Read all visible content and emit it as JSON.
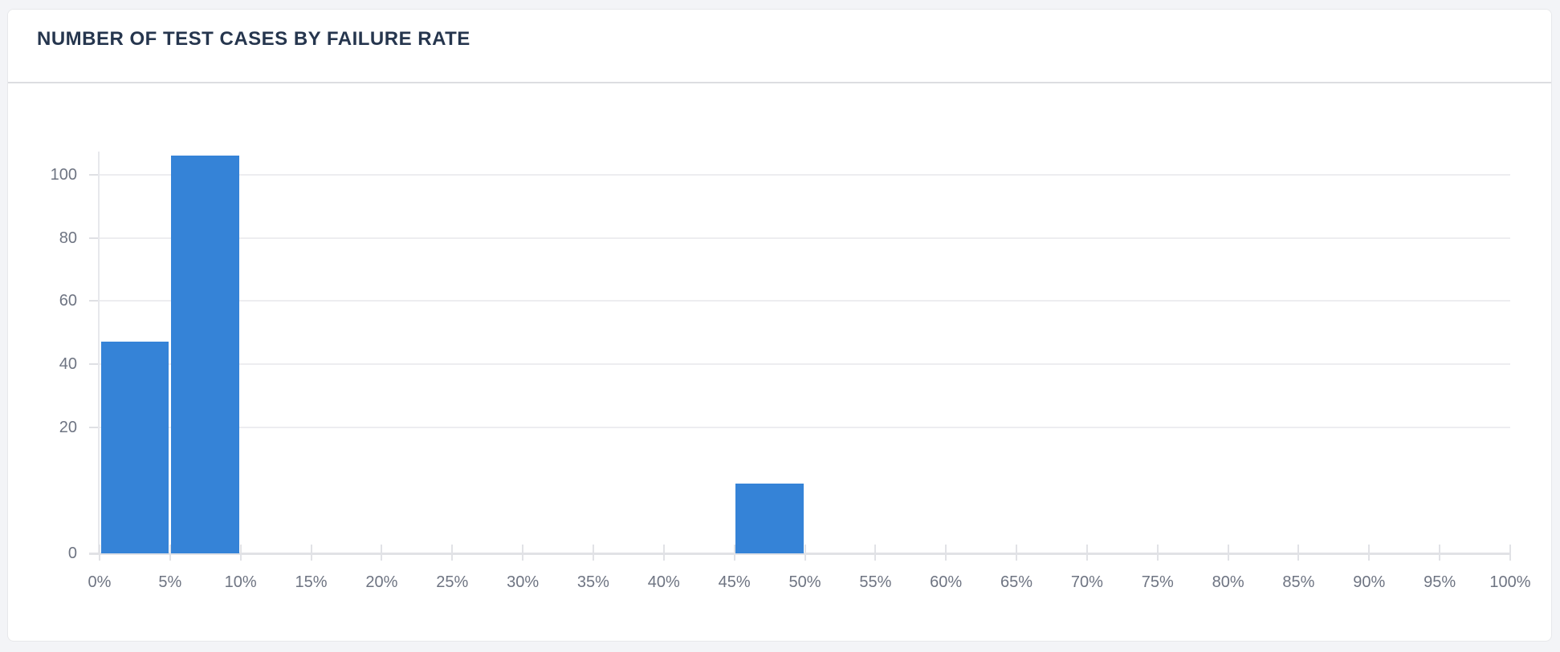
{
  "card": {
    "header": {
      "title": "NUMBER OF TEST CASES BY FAILURE RATE"
    }
  },
  "chart_data": {
    "type": "bar",
    "title": "NUMBER OF TEST CASES BY FAILURE RATE",
    "xlabel": "",
    "ylabel": "",
    "legend": "none",
    "grid": "horizontal",
    "x_tick_labels": [
      "0%",
      "5%",
      "10%",
      "15%",
      "20%",
      "25%",
      "30%",
      "35%",
      "40%",
      "45%",
      "50%",
      "55%",
      "60%",
      "65%",
      "70%",
      "75%",
      "80%",
      "85%",
      "90%",
      "95%",
      "100%"
    ],
    "y_axis": {
      "tick_labels_visible": [
        "0",
        "20",
        "40",
        "60",
        "80",
        "100"
      ],
      "stops": [
        {
          "value": 0,
          "label": "0"
        },
        {
          "value": 10,
          "label": ""
        },
        {
          "value": 20,
          "label": "20"
        },
        {
          "value": 40,
          "label": "40"
        },
        {
          "value": 60,
          "label": "60"
        },
        {
          "value": 80,
          "label": "80"
        },
        {
          "value": 100,
          "label": "100"
        }
      ]
    },
    "bars": [
      {
        "bin_index": 0,
        "bin_start": "0%",
        "bin_end": "5%",
        "value": 47
      },
      {
        "bin_index": 1,
        "bin_start": "5%",
        "bin_end": "10%",
        "value": 106
      },
      {
        "bin_index": 9,
        "bin_start": "45%",
        "bin_end": "50%",
        "value": 11
      }
    ],
    "colors": {
      "bar": "#3583d7",
      "gridline": "#ededf0",
      "axis": "#e1e2e6",
      "tick_label": "#6e7482",
      "title": "#26364e"
    }
  }
}
